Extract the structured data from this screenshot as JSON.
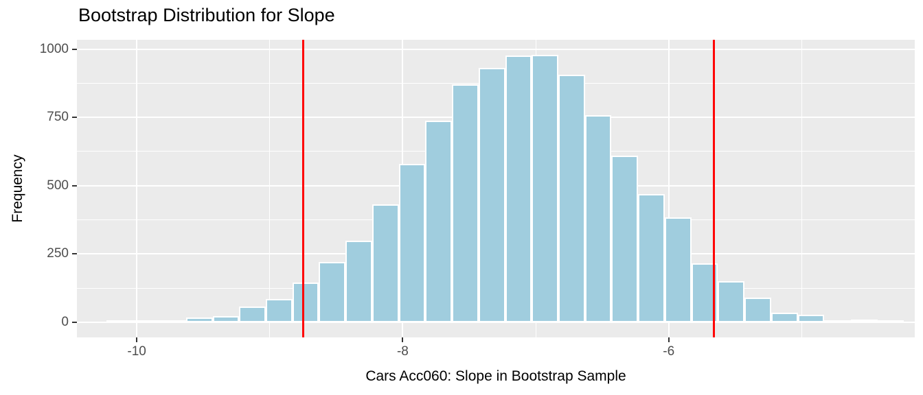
{
  "title": "Bootstrap Distribution for Slope",
  "colors": {
    "background": "#FFFFFF",
    "panel": "#EBEBEB",
    "gridline": "#FFFFFF",
    "bar_fill": "#A0CDDE",
    "bar_border": "#FFFFFF",
    "vline_red": "#FF0000",
    "tick_label_text": "#4D4D4D",
    "tick_mark": "#333333",
    "title_text": "#000000"
  },
  "chart_data": {
    "type": "bar",
    "subtype": "histogram",
    "title": "Bootstrap Distribution for Slope",
    "xlabel": "Cars Acc060: Slope in Bootstrap Sample",
    "ylabel": "Frequency",
    "grid": true,
    "legend": "none",
    "x_ticks": [
      -10,
      -8,
      -6
    ],
    "x_minor_gridlines": [
      -9,
      -7,
      -5
    ],
    "y_ticks": [
      0,
      250,
      500,
      750,
      1000
    ],
    "y_minor_gridlines": [
      125,
      375,
      625,
      875
    ],
    "xlim": [
      -10.45,
      -4.15
    ],
    "ylim": [
      -55,
      1034
    ],
    "bins": {
      "start": -10.23,
      "width": 0.2
    },
    "frequencies": [
      2,
      4,
      8,
      17,
      23,
      57,
      85,
      145,
      220,
      300,
      433,
      580,
      737,
      872,
      931,
      977,
      980,
      907,
      758,
      611,
      470,
      385,
      215,
      150,
      90,
      35,
      28,
      5,
      10,
      2
    ],
    "vlines": [
      -8.75,
      -5.66
    ],
    "total_samples_approx": 10000
  }
}
